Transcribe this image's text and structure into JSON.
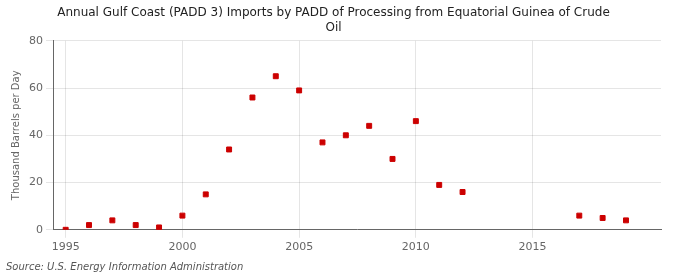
{
  "chart_data": {
    "type": "scatter",
    "title": "Annual Gulf Coast (PADD 3) Imports by PADD of Processing from Equatorial Guinea of Crude\nOil",
    "ylabel": "Thousand Barrels per Day",
    "source": "Source: U.S. Energy Information Administration",
    "x": [
      1995,
      1996,
      1997,
      1998,
      1999,
      2000,
      2001,
      2002,
      2003,
      2004,
      2005,
      2006,
      2007,
      2008,
      2009,
      2010,
      2011,
      2012,
      2017,
      2018,
      2019
    ],
    "values": [
      0,
      2,
      4,
      2,
      1,
      6,
      15,
      34,
      56,
      65,
      59,
      37,
      40,
      44,
      30,
      46,
      19,
      16,
      6,
      5,
      4
    ],
    "color": "#cc0000",
    "marker": "square",
    "xlim": [
      1994.5,
      2020.5
    ],
    "ylim": [
      0,
      80
    ],
    "xticks": [
      1995,
      2000,
      2005,
      2010,
      2015
    ],
    "yticks": [
      0,
      20,
      40,
      60,
      80
    ],
    "grid": true
  }
}
